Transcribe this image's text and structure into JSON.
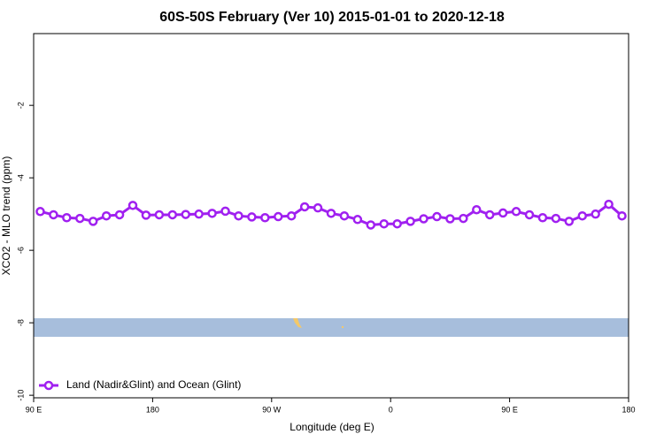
{
  "chart_data": {
    "type": "line",
    "title": "60S-50S February (Ver 10)   2015-01-01 to 2020-12-18",
    "xlabel": "Longitude (deg E)",
    "ylabel": "XCO2 - MLO trend (ppm)",
    "x": [
      95,
      105,
      115,
      125,
      135,
      145,
      155,
      165,
      175,
      185,
      195,
      205,
      215,
      225,
      235,
      245,
      255,
      265,
      275,
      285,
      295,
      305,
      315,
      325,
      335,
      345,
      355,
      365,
      375,
      385,
      395,
      405,
      415,
      425,
      435,
      445,
      455,
      465,
      475,
      485,
      495,
      505,
      515,
      525,
      535
    ],
    "series": [
      {
        "name": "Land (Nadir&Glint) and Ocean (Glint)",
        "color": "#a020f0",
        "values": [
          -4.93,
          -5.02,
          -5.1,
          -5.12,
          -5.2,
          -5.05,
          -5.02,
          -4.76,
          -5.03,
          -5.02,
          -5.02,
          -5.01,
          -5.0,
          -4.98,
          -4.92,
          -5.05,
          -5.08,
          -5.1,
          -5.07,
          -5.05,
          -4.8,
          -4.83,
          -4.98,
          -5.05,
          -5.15,
          -5.3,
          -5.27,
          -5.27,
          -5.2,
          -5.13,
          -5.07,
          -5.13,
          -5.12,
          -4.88,
          -5.02,
          -4.97,
          -4.93,
          -5.02,
          -5.1,
          -5.12,
          -5.2,
          -5.05,
          -5.0,
          -4.73,
          -5.05
        ]
      }
    ],
    "xlim": [
      90,
      540
    ],
    "xticks": [
      {
        "value": 90,
        "label": "90 E"
      },
      180,
      {
        "value": 270,
        "label": "90 W"
      },
      {
        "value": 360,
        "label": "0"
      },
      {
        "value": 450,
        "label": "90 E"
      },
      {
        "value": 540,
        "label": "180"
      }
    ],
    "ylim": [
      -10.07,
      -0.02
    ],
    "yticks": [
      -10,
      -8,
      -6,
      -4,
      -2
    ],
    "legend": "bottom-left"
  }
}
